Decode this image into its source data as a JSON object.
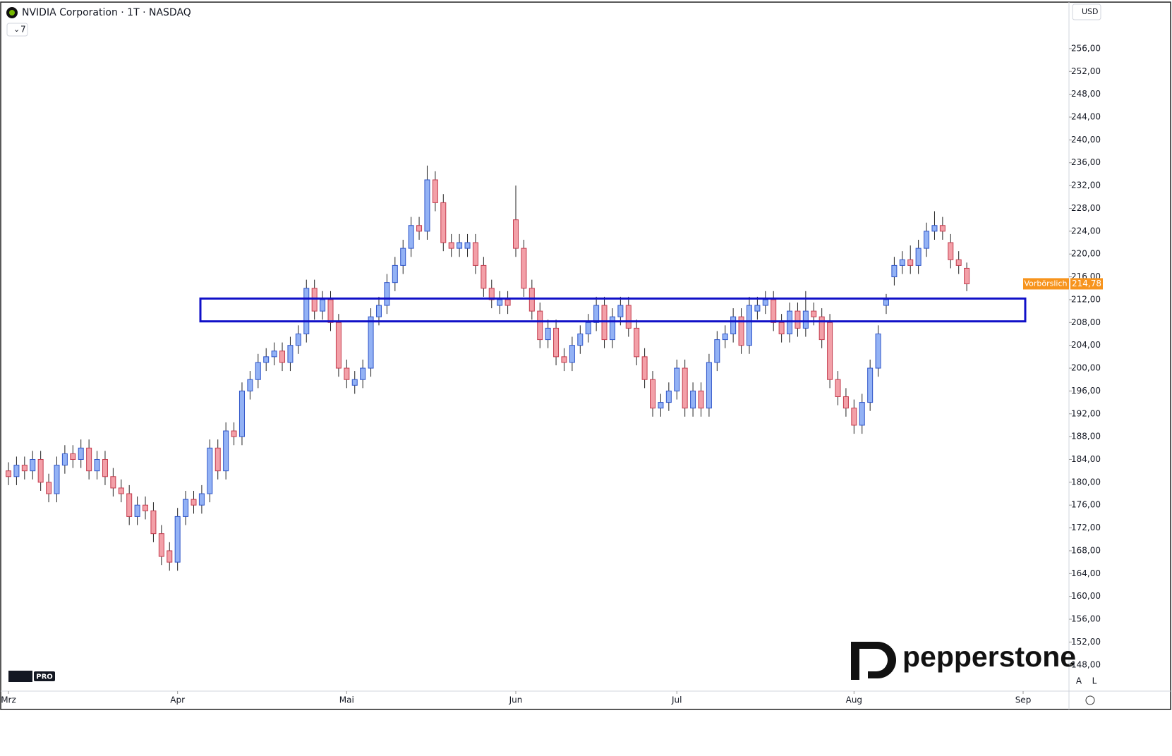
{
  "header": {
    "title": "NVIDIA Corporation · 1T · NASDAQ",
    "indicator_count": "7",
    "currency": "USD"
  },
  "chart_data": {
    "type": "candlestick",
    "categories": [
      "Mrz",
      null,
      null,
      null,
      null,
      null,
      null,
      null,
      null,
      null,
      null,
      null,
      null,
      null,
      null,
      null,
      null,
      null,
      null,
      null,
      null,
      "Apr",
      null,
      null,
      null,
      null,
      null,
      null,
      null,
      null,
      null,
      null,
      null,
      null,
      null,
      null,
      null,
      null,
      null,
      null,
      null,
      null,
      "Mai",
      null,
      null,
      null,
      null,
      null,
      null,
      null,
      null,
      null,
      null,
      null,
      null,
      null,
      null,
      null,
      null,
      null,
      null,
      null,
      null,
      "Jun",
      null,
      null,
      null,
      null,
      null,
      null,
      null,
      null,
      null,
      null,
      null,
      null,
      null,
      null,
      null,
      null,
      null,
      null,
      null,
      "Jul",
      null,
      null,
      null,
      null,
      null,
      null,
      null,
      null,
      null,
      null,
      null,
      null,
      null,
      null,
      null,
      null,
      null,
      null,
      null,
      null,
      null,
      "Aug",
      null,
      null,
      null,
      null,
      null,
      null,
      null,
      null,
      null,
      null,
      null,
      null,
      null,
      null,
      null,
      null,
      null,
      null,
      null,
      null,
      "Sep"
    ],
    "candles": [
      [
        182,
        183.5,
        179.5,
        181
      ],
      [
        181,
        184.5,
        179.5,
        183
      ],
      [
        183,
        184.5,
        180.5,
        182
      ],
      [
        182,
        185.5,
        180.5,
        184
      ],
      [
        184,
        185.5,
        178.5,
        180
      ],
      [
        180,
        181.5,
        176.5,
        178
      ],
      [
        178,
        184.5,
        176.5,
        183
      ],
      [
        183,
        186.5,
        181.5,
        185
      ],
      [
        185,
        186.5,
        182.5,
        184
      ],
      [
        184,
        187.5,
        182.5,
        186
      ],
      [
        186,
        187.5,
        180.5,
        182
      ],
      [
        182,
        185.5,
        180.5,
        184
      ],
      [
        184,
        185.5,
        179.5,
        181
      ],
      [
        181,
        182.5,
        177.5,
        179
      ],
      [
        179,
        180.5,
        176.5,
        178
      ],
      [
        178,
        179.5,
        172.5,
        174
      ],
      [
        174,
        177.5,
        172.5,
        176
      ],
      [
        176,
        177.5,
        173.5,
        175
      ],
      [
        175,
        176.5,
        169.5,
        171
      ],
      [
        171,
        172.5,
        165.5,
        167
      ],
      [
        168,
        169.5,
        164.5,
        166
      ],
      [
        166,
        175.5,
        164.5,
        174
      ],
      [
        174,
        178.5,
        172.5,
        177
      ],
      [
        177,
        178.5,
        174.5,
        176
      ],
      [
        176,
        179.5,
        174.5,
        178
      ],
      [
        178,
        187.5,
        176.5,
        186
      ],
      [
        186,
        187.5,
        180.5,
        182
      ],
      [
        182,
        190.5,
        180.5,
        189
      ],
      [
        189,
        190.5,
        186.5,
        188
      ],
      [
        188,
        197.5,
        186.5,
        196
      ],
      [
        196,
        199.5,
        194.5,
        198
      ],
      [
        198,
        202.5,
        196.5,
        201
      ],
      [
        201,
        203.5,
        199.5,
        202
      ],
      [
        202,
        204.5,
        200.5,
        203
      ],
      [
        203,
        204.5,
        199.5,
        201
      ],
      [
        201,
        205.5,
        199.5,
        204
      ],
      [
        204,
        207.5,
        202.5,
        206
      ],
      [
        206,
        215.5,
        204.5,
        214
      ],
      [
        214,
        215.5,
        208.5,
        210
      ],
      [
        210,
        213.5,
        208.5,
        212
      ],
      [
        212,
        213.5,
        206.5,
        208
      ],
      [
        208,
        209.5,
        198.5,
        200
      ],
      [
        200,
        201.5,
        196.5,
        198
      ],
      [
        197,
        199.5,
        195.5,
        198
      ],
      [
        198,
        201.5,
        196.5,
        200
      ],
      [
        200,
        210.5,
        198.5,
        209
      ],
      [
        209,
        212.5,
        207.5,
        211
      ],
      [
        211,
        216.5,
        209.5,
        215
      ],
      [
        215,
        219.5,
        213.5,
        218
      ],
      [
        218,
        222.5,
        216.5,
        221
      ],
      [
        221,
        226.5,
        219.5,
        225
      ],
      [
        225,
        226.5,
        222.5,
        224
      ],
      [
        224,
        235.5,
        222.5,
        233
      ],
      [
        233,
        234.5,
        227.5,
        229
      ],
      [
        229,
        230.5,
        220.5,
        222
      ],
      [
        222,
        223.5,
        219.5,
        221
      ],
      [
        221,
        223.5,
        219.5,
        222
      ],
      [
        221,
        223.5,
        219.5,
        222
      ],
      [
        222,
        223.5,
        216.5,
        218
      ],
      [
        218,
        219.5,
        212.5,
        214
      ],
      [
        214,
        215.5,
        210.5,
        212
      ],
      [
        211,
        213.5,
        209.5,
        212
      ],
      [
        212,
        213.5,
        209.5,
        211
      ],
      [
        226,
        232,
        219.5,
        221
      ],
      [
        221,
        222.5,
        212.5,
        214
      ],
      [
        214,
        215.5,
        208.5,
        210
      ],
      [
        210,
        211.5,
        203.5,
        205
      ],
      [
        205,
        208.5,
        203.5,
        207
      ],
      [
        207,
        208.5,
        200.5,
        202
      ],
      [
        202,
        203.5,
        199.5,
        201
      ],
      [
        201,
        205.5,
        199.5,
        204
      ],
      [
        204,
        207.5,
        202.5,
        206
      ],
      [
        206,
        209.5,
        204.5,
        208
      ],
      [
        208,
        212.5,
        206.5,
        211
      ],
      [
        211,
        212.5,
        203.5,
        205
      ],
      [
        205,
        210.5,
        203.5,
        209
      ],
      [
        209,
        212.5,
        207.5,
        211
      ],
      [
        211,
        212.5,
        205.5,
        207
      ],
      [
        207,
        208.5,
        200.5,
        202
      ],
      [
        202,
        203.5,
        196.5,
        198
      ],
      [
        198,
        199.5,
        191.5,
        193
      ],
      [
        193,
        195.5,
        191.5,
        194
      ],
      [
        194,
        197.5,
        192.5,
        196
      ],
      [
        196,
        201.5,
        194.5,
        200
      ],
      [
        200,
        201.5,
        191.5,
        193
      ],
      [
        193,
        197.5,
        191.5,
        196
      ],
      [
        196,
        197.5,
        191.5,
        193
      ],
      [
        193,
        202.5,
        191.5,
        201
      ],
      [
        201,
        206.5,
        199.5,
        205
      ],
      [
        205,
        207.5,
        203.5,
        206
      ],
      [
        206,
        210.5,
        204.5,
        209
      ],
      [
        209,
        210.5,
        202.5,
        204
      ],
      [
        204,
        212.5,
        202.5,
        211
      ],
      [
        210,
        212.5,
        208.5,
        211
      ],
      [
        211,
        213.5,
        209.5,
        212
      ],
      [
        212,
        213.5,
        206.5,
        208
      ],
      [
        208,
        209.5,
        204.5,
        206
      ],
      [
        206,
        211.5,
        204.5,
        210
      ],
      [
        210,
        211.5,
        205.5,
        207
      ],
      [
        207,
        213.5,
        205.5,
        210
      ],
      [
        210,
        211.5,
        207.5,
        209
      ],
      [
        209,
        210.5,
        203.5,
        205
      ],
      [
        208,
        209.5,
        196.5,
        198
      ],
      [
        198,
        199.5,
        193.5,
        195
      ],
      [
        195,
        196.5,
        191.5,
        193
      ],
      [
        193,
        194.5,
        188.5,
        190
      ],
      [
        190,
        195.5,
        188.5,
        194
      ],
      [
        194,
        201.5,
        192.5,
        200
      ],
      [
        200,
        207.5,
        198.5,
        206
      ],
      [
        211,
        213,
        209.5,
        212
      ],
      [
        216,
        219.5,
        214.5,
        218
      ],
      [
        218,
        220.5,
        216.5,
        219
      ],
      [
        219,
        221.5,
        216.5,
        218
      ],
      [
        218,
        222.5,
        216.5,
        221
      ],
      [
        221,
        225.5,
        219.5,
        224
      ],
      [
        224,
        227.5,
        222.5,
        225
      ],
      [
        225,
        226.5,
        222.5,
        224
      ],
      [
        222,
        223.5,
        217.5,
        219
      ],
      [
        219,
        220.5,
        216.5,
        218
      ],
      [
        217.5,
        218.5,
        213.5,
        214.78
      ],
      null,
      null,
      null,
      null,
      null,
      null,
      null
    ],
    "up_color": "#93b2f5",
    "up_edge": "#2f55c9",
    "down_color": "#f3a0a8",
    "down_edge": "#c43c4e",
    "ylim": [
      143.4,
      263.9
    ],
    "yticks": [
      {
        "value": 148,
        "label": "148,00"
      },
      {
        "value": 152,
        "label": "152,00"
      },
      {
        "value": 156,
        "label": "156,00"
      },
      {
        "value": 160,
        "label": "160,00"
      },
      {
        "value": 164,
        "label": "164,00"
      },
      {
        "value": 168,
        "label": "168,00"
      },
      {
        "value": 172,
        "label": "172,00"
      },
      {
        "value": 176,
        "label": "176,00"
      },
      {
        "value": 180,
        "label": "180,00"
      },
      {
        "value": 184,
        "label": "184,00"
      },
      {
        "value": 188,
        "label": "188,00"
      },
      {
        "value": 192,
        "label": "192,00"
      },
      {
        "value": 196,
        "label": "196,00"
      },
      {
        "value": 200,
        "label": "200,00"
      },
      {
        "value": 204,
        "label": "204,00"
      },
      {
        "value": 208,
        "label": "208,00"
      },
      {
        "value": 212,
        "label": "212,00"
      },
      {
        "value": 216,
        "label": "216,00"
      },
      {
        "value": 220,
        "label": "220,00"
      },
      {
        "value": 224,
        "label": "224,00"
      },
      {
        "value": 228,
        "label": "228,00"
      },
      {
        "value": 232,
        "label": "232,00"
      },
      {
        "value": 236,
        "label": "236,00"
      },
      {
        "value": 240,
        "label": "240,00"
      },
      {
        "value": 244,
        "label": "244,00"
      },
      {
        "value": 248,
        "label": "248,00"
      },
      {
        "value": 252,
        "label": "252,00"
      },
      {
        "value": 256,
        "label": "256,00"
      }
    ],
    "last_price": {
      "value": 214.78,
      "label": "214,78"
    },
    "last_price_tag": "Vorbörslich",
    "highlight_zone": [
      208.2,
      212.2
    ],
    "highlight_color": "#1010c8"
  },
  "footer": {
    "brand": "pepperstone",
    "badge": "PRO",
    "scale_buttons": [
      "A",
      "L"
    ]
  }
}
